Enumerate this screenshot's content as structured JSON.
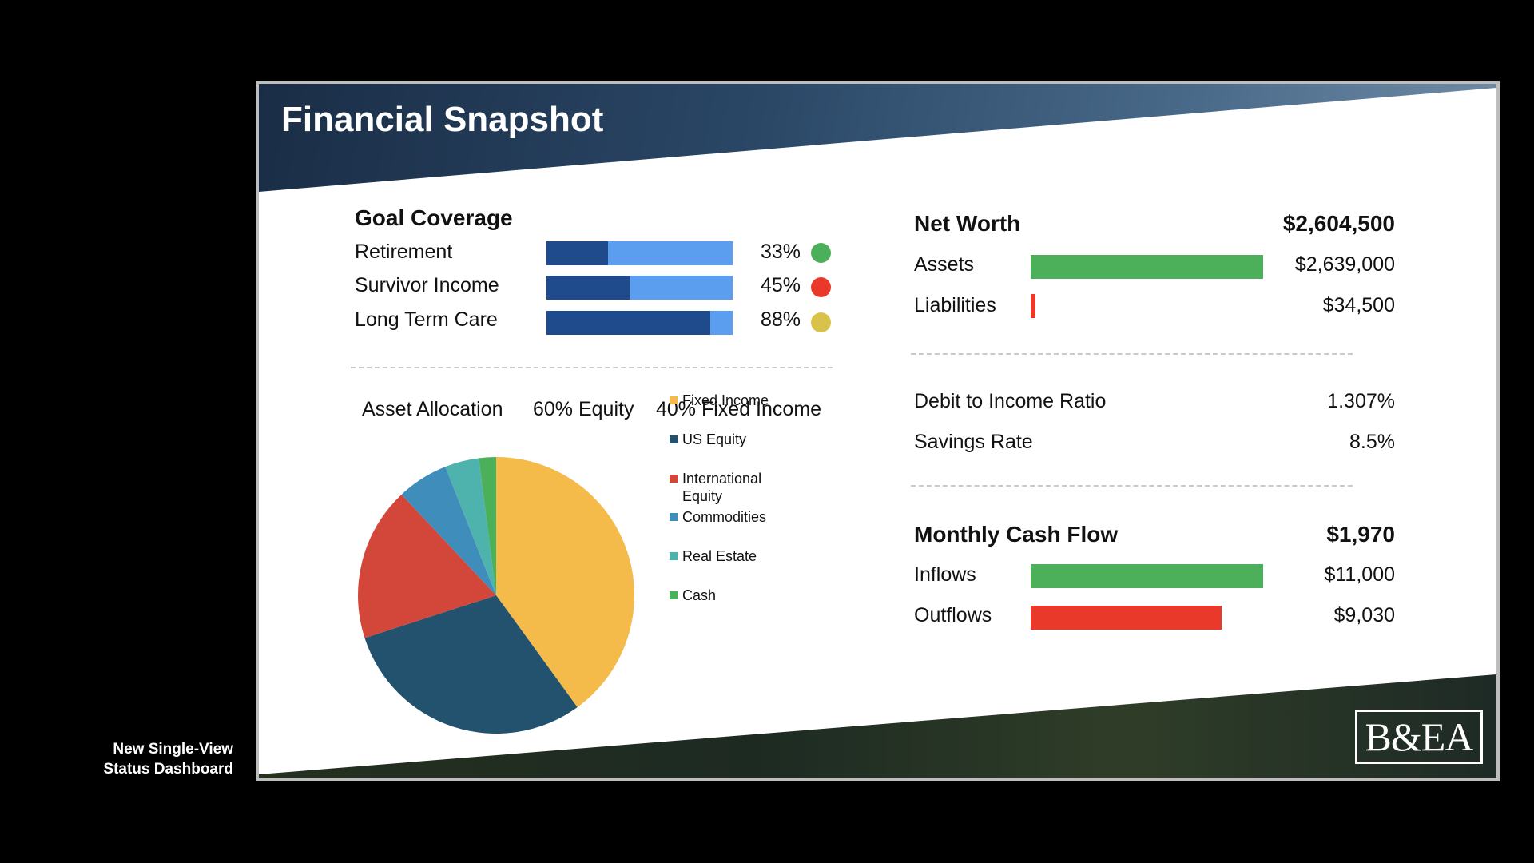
{
  "caption": {
    "line1": "New Single-View",
    "line2": "Status Dashboard"
  },
  "slide": {
    "title": "Financial Snapshot",
    "logo": "B&EA"
  },
  "goal_coverage": {
    "heading": "Goal Coverage",
    "items": [
      {
        "label": "Retirement",
        "value": 0.33,
        "pct": "33%",
        "status": "green",
        "status_color": "#4caf5a"
      },
      {
        "label": "Survivor Income",
        "value": 0.45,
        "pct": "45%",
        "status": "red",
        "status_color": "#e8392b"
      },
      {
        "label": "Long Term Care",
        "value": 0.88,
        "pct": "88%",
        "status": "yellow",
        "status_color": "#d9c24a"
      }
    ],
    "colors": {
      "filled": "#1f4a8c",
      "remaining": "#5b9ef0"
    }
  },
  "asset_allocation": {
    "label": "Asset Allocation",
    "equity": "60% Equity",
    "fixed_income": "40% Fixed Income"
  },
  "chart_data": {
    "type": "pie",
    "title": "",
    "categories": [
      "Fixed Income",
      "US Equity",
      "International Equity",
      "Commodities",
      "Real Estate",
      "Cash"
    ],
    "legend": [
      "Fixed Income",
      "US Equity",
      "International\nEquity",
      "Commodities",
      "Real Estate",
      "Cash"
    ],
    "values": [
      40,
      30,
      18,
      6,
      4,
      2
    ],
    "colors": [
      "#f4bb4a",
      "#23526f",
      "#d2473a",
      "#3f8dbb",
      "#4fb3ad",
      "#4caf5a"
    ],
    "legend_position": "right"
  },
  "net_worth": {
    "heading": "Net Worth",
    "total": "$2,604,500",
    "assets": {
      "label": "Assets",
      "value": "$2,639,000",
      "amount": 2639000,
      "color": "#4caf5a"
    },
    "liabilities": {
      "label": "Liabilities",
      "value": "$34,500",
      "amount": 34500,
      "color": "#e8392b"
    }
  },
  "ratios": {
    "debt_income": {
      "label": "Debit to Income Ratio",
      "value": "1.307%"
    },
    "savings": {
      "label": "Savings Rate",
      "value": "8.5%"
    }
  },
  "cash_flow": {
    "heading": "Monthly Cash Flow",
    "total": "$1,970",
    "inflows": {
      "label": "Inflows",
      "value": "$11,000",
      "amount": 11000,
      "color": "#4caf5a"
    },
    "outflows": {
      "label": "Outflows",
      "value": "$9,030",
      "amount": 9030,
      "color": "#e8392b"
    }
  }
}
